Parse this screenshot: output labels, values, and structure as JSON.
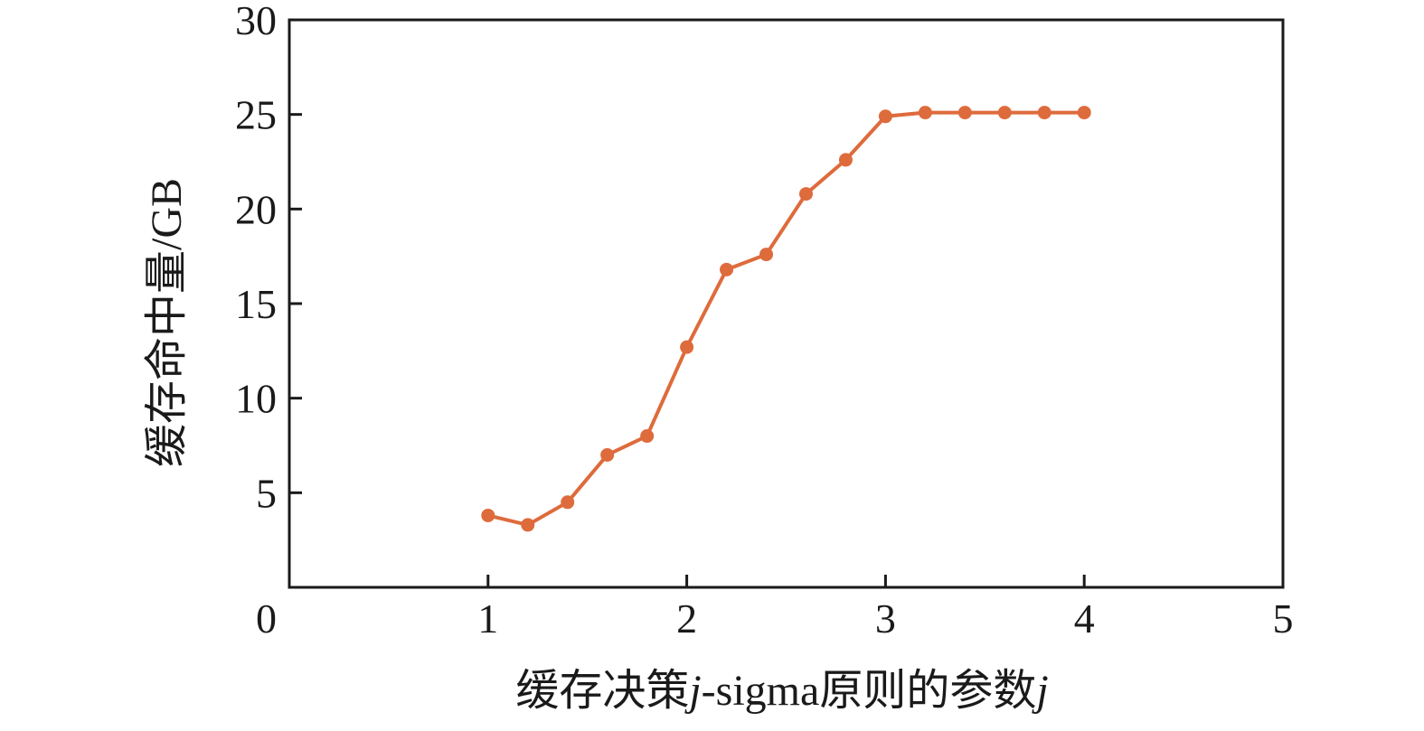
{
  "chart_data": {
    "type": "line",
    "title": "",
    "xlabel_parts": [
      {
        "text": "缓存决策",
        "italic": false
      },
      {
        "text": "j",
        "italic": true
      },
      {
        "text": "-sigma",
        "italic": false
      },
      {
        "text": "原则的参数",
        "italic": false
      },
      {
        "text": "j",
        "italic": true
      }
    ],
    "ylabel_parts": [
      {
        "text": "缓存命中量/GB",
        "italic": false
      }
    ],
    "x": [
      1.0,
      1.2,
      1.4,
      1.6,
      1.8,
      2.0,
      2.2,
      2.4,
      2.6,
      2.8,
      3.0,
      3.2,
      3.4,
      3.6,
      3.8,
      4.0
    ],
    "y": [
      3.8,
      3.3,
      4.5,
      7.0,
      8.0,
      12.7,
      16.8,
      17.6,
      20.8,
      22.6,
      24.9,
      25.1,
      25.1,
      25.1,
      25.1,
      25.1
    ],
    "xlim": [
      0,
      5
    ],
    "ylim": [
      0,
      30
    ],
    "xticks": [
      0,
      1,
      2,
      3,
      4,
      5
    ],
    "yticks": [
      5,
      10,
      15,
      20,
      25,
      30
    ],
    "grid": false,
    "legend": "none",
    "line_color": "#de6b3c",
    "axis_color": "#1a1a1a",
    "marker": "circle"
  }
}
